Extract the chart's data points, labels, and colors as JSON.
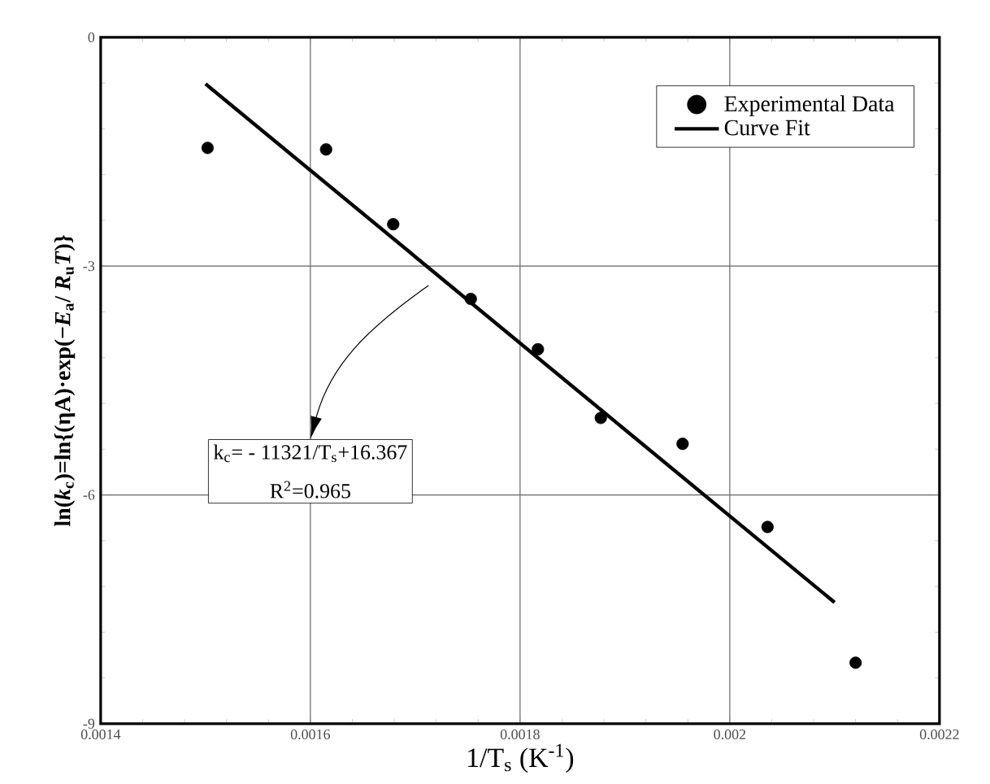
{
  "chart_data": {
    "type": "scatter",
    "xlabel": "1/T$_{s}$ (K$^{-1}$)",
    "ylabel": "ln(*k*$_{c}$)=ln{(ηA)·exp(−*E*$_{a}$/ *R*$_{u}$*T*)}",
    "xlim": [
      0.0014,
      0.0022
    ],
    "xticks": [
      0.0014,
      0.0016,
      0.0018,
      0.002,
      0.0022
    ],
    "ylim": [
      -9,
      0
    ],
    "yticks": [
      -9,
      -6,
      -3,
      0
    ],
    "grid": true,
    "legend": "top right",
    "series": [
      {
        "name": "Experimental Data",
        "marker": "circle",
        "color": "#000000",
        "x": [
          0.001502,
          0.001615,
          0.001679,
          0.001753,
          0.001817,
          0.001877,
          0.001955,
          0.002036,
          0.00212
        ],
        "values": [
          -1.45,
          -1.47,
          -2.45,
          -3.43,
          -4.09,
          -4.99,
          -5.33,
          -6.42,
          -8.2
        ]
      },
      {
        "name": "Curve Fit",
        "type": "line",
        "marker": "none",
        "line_style": "solid",
        "color": "#000000",
        "x": [
          0.0015,
          0.0021
        ],
        "values": [
          -0.61,
          -7.41
        ]
      }
    ],
    "annotations": [
      "k$_{c}$= - 11321/T$_{s}$+16.367",
      "R$^{2}$=0.965"
    ]
  }
}
